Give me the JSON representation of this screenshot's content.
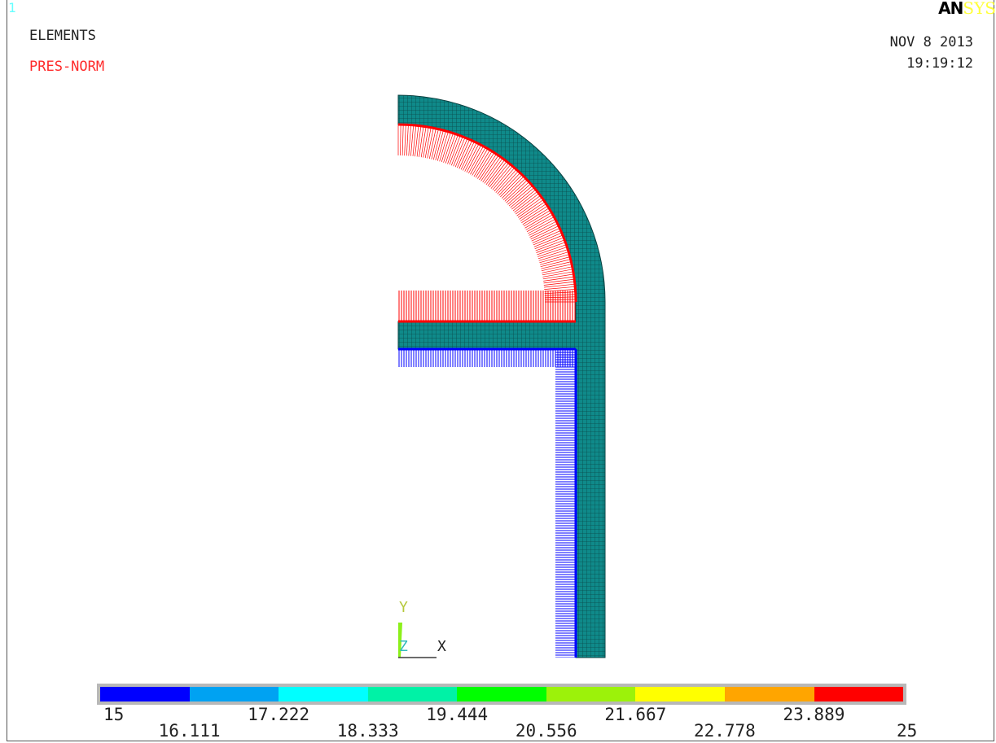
{
  "header": {
    "window_number": "1",
    "plot_title": "ELEMENTS",
    "load_label": "PRES-NORM",
    "date": "NOV  8 2013",
    "time": "19:19:12",
    "logo_an": "AN",
    "logo_sys": "SYS"
  },
  "triad": {
    "y_label": "Y",
    "z_label": "Z",
    "x_label": "X"
  },
  "colors": {
    "mesh_fill": "#0f8a8a",
    "mesh_line": "#0a4040",
    "pressure_high": "#ff0000",
    "pressure_low": "#0000ff"
  },
  "legend": {
    "colors": [
      "#0000ff",
      "#00a2f2",
      "#00ffff",
      "#00f2a6",
      "#00ff00",
      "#9cf20a",
      "#ffff00",
      "#ffa500",
      "#ff0000"
    ],
    "labels_top": [
      "15",
      "17.222",
      "19.444",
      "21.667",
      "23.889"
    ],
    "labels_bottom": [
      "16.111",
      "18.333",
      "20.556",
      "22.778",
      "25"
    ]
  }
}
